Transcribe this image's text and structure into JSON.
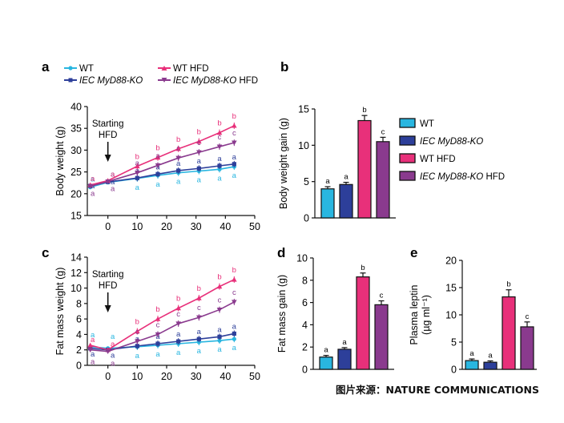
{
  "colors": {
    "WT": "#29b6e0",
    "KO": "#2d3f9a",
    "WT_HFD": "#e8307a",
    "KO_HFD": "#8a3a8e",
    "axis": "#111111"
  },
  "source_text": "图片来源：NATURE COMMUNICATIONS",
  "chart_data": [
    {
      "panel": "a",
      "type": "line",
      "ylabel": "Body weight (g)",
      "xlim": [
        -7,
        50
      ],
      "ylim": [
        15,
        40
      ],
      "xticks": [
        "0",
        "10",
        "20",
        "30",
        "40",
        "50"
      ],
      "yticks": [
        "15",
        "20",
        "25",
        "30",
        "35",
        "40"
      ],
      "annotation": [
        "Starting",
        "HFD"
      ],
      "legend": [
        "WT",
        "IEC MyD88-KO",
        "WT HFD",
        "IEC MyD88-KO HFD"
      ],
      "x": [
        -6,
        0,
        10,
        17,
        24,
        31,
        38,
        43
      ],
      "series": [
        {
          "name": "WT",
          "key": "WT",
          "values": [
            21.5,
            22.6,
            23.5,
            24.2,
            24.8,
            25.2,
            25.6,
            26.2
          ],
          "letters": [
            "a",
            "a",
            "a",
            "a",
            "a",
            "a",
            "a",
            "a"
          ]
        },
        {
          "name": "IEC MyD88-KO",
          "key": "KO",
          "values": [
            21.8,
            22.7,
            23.6,
            24.5,
            25.3,
            25.8,
            26.4,
            26.8
          ],
          "letters": [
            "a",
            "a",
            "a",
            "a",
            "a",
            "a",
            "a",
            "a"
          ]
        },
        {
          "name": "WT HFD",
          "key": "WT_HFD",
          "values": [
            22.0,
            23.0,
            26.3,
            28.3,
            30.3,
            32.0,
            34.0,
            35.6
          ],
          "letters": [
            "a",
            "a",
            "b",
            "b",
            "b",
            "b",
            "b",
            "b"
          ]
        },
        {
          "name": "IEC MyD88-KO HFD",
          "key": "KO_HFD",
          "values": [
            21.7,
            22.8,
            24.8,
            26.5,
            28.2,
            29.5,
            30.8,
            31.7
          ],
          "letters": [
            "a",
            "a",
            "a",
            "a",
            "c",
            "c",
            "c",
            "c"
          ]
        }
      ]
    },
    {
      "panel": "b",
      "type": "bar",
      "ylabel": "Body weight gain (g)",
      "ylim": [
        0,
        15
      ],
      "yticks": [
        "0",
        "5",
        "10",
        "15"
      ],
      "categories": [
        "WT",
        "IEC MyD88-KO",
        "WT HFD",
        "IEC MyD88-KO HFD"
      ],
      "values": [
        4.0,
        4.6,
        13.4,
        10.5
      ],
      "errors": [
        0.3,
        0.3,
        0.7,
        0.6
      ],
      "letters": [
        "a",
        "a",
        "b",
        "c"
      ]
    },
    {
      "panel": "c",
      "type": "line",
      "ylabel": "Fat mass weight (g)",
      "xlim": [
        -7,
        50
      ],
      "ylim": [
        0,
        14
      ],
      "xticks": [
        "0",
        "10",
        "20",
        "30",
        "40",
        "50"
      ],
      "yticks": [
        "0",
        "2",
        "4",
        "6",
        "8",
        "10",
        "12",
        "14"
      ],
      "annotation": [
        "Starting",
        "HFD"
      ],
      "x": [
        -6,
        0,
        10,
        17,
        24,
        31,
        38,
        43
      ],
      "series": [
        {
          "name": "WT",
          "key": "WT",
          "values": [
            2.4,
            2.2,
            2.4,
            2.6,
            2.8,
            3.0,
            3.2,
            3.4
          ],
          "letters": [
            "a",
            "a",
            "a",
            "a",
            "a",
            "a",
            "a",
            "a"
          ]
        },
        {
          "name": "IEC MyD88-KO",
          "key": "KO",
          "values": [
            2.2,
            2.0,
            2.5,
            2.8,
            3.1,
            3.4,
            3.7,
            4.1
          ],
          "letters": [
            "a",
            "a",
            "a",
            "a",
            "a",
            "a",
            "a",
            "a"
          ]
        },
        {
          "name": "WT HFD",
          "key": "WT_HFD",
          "values": [
            2.6,
            2.0,
            4.4,
            6.0,
            7.4,
            8.7,
            10.2,
            11.1
          ],
          "letters": [
            "a",
            "a",
            "b",
            "b",
            "b",
            "b",
            "b",
            "b"
          ]
        },
        {
          "name": "IEC MyD88-KO HFD",
          "key": "KO_HFD",
          "values": [
            2.0,
            1.8,
            3.1,
            4.0,
            5.4,
            6.2,
            7.2,
            8.2
          ],
          "letters": [
            "a",
            "a",
            "c",
            "c",
            "c",
            "c",
            "c",
            "c"
          ]
        }
      ]
    },
    {
      "panel": "d",
      "type": "bar",
      "ylabel": "Fat mass gain (g)",
      "ylim": [
        0,
        10
      ],
      "yticks": [
        "0",
        "2",
        "4",
        "6",
        "8",
        "10"
      ],
      "categories": [
        "WT",
        "IEC MyD88-KO",
        "WT HFD",
        "IEC MyD88-KO HFD"
      ],
      "values": [
        1.1,
        1.8,
        8.3,
        5.8
      ],
      "errors": [
        0.15,
        0.15,
        0.35,
        0.35
      ],
      "letters": [
        "a",
        "a",
        "b",
        "c"
      ]
    },
    {
      "panel": "e",
      "type": "bar",
      "ylabel": "Plasma leptin",
      "ylabel2": "(µg ml⁻¹)",
      "ylim": [
        0,
        20
      ],
      "yticks": [
        "0",
        "5",
        "10",
        "15",
        "20"
      ],
      "categories": [
        "WT",
        "IEC MyD88-KO",
        "WT HFD",
        "IEC MyD88-KO HFD"
      ],
      "values": [
        1.6,
        1.3,
        13.3,
        7.8
      ],
      "errors": [
        0.3,
        0.25,
        1.3,
        0.9
      ],
      "letters": [
        "a",
        "a",
        "b",
        "c"
      ]
    }
  ]
}
